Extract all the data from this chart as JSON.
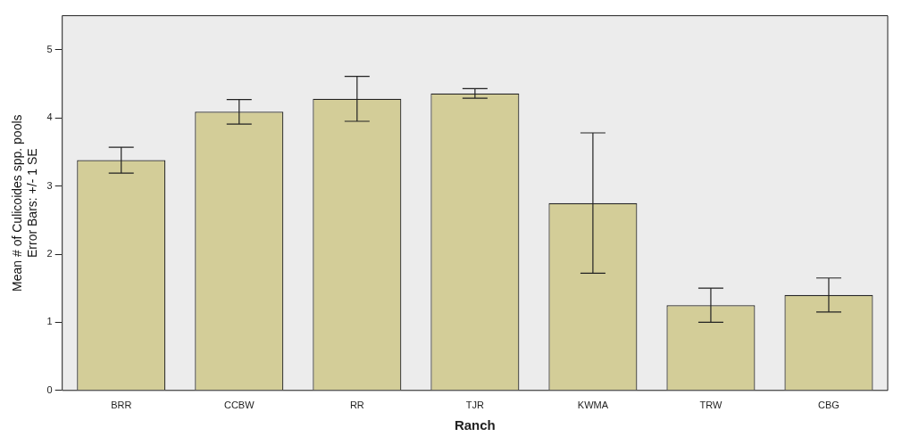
{
  "chart_data": {
    "type": "bar",
    "xlabel": "Ranch",
    "ylabel": "Mean # of Culicoides spp. pools",
    "annotations": [
      "Error Bars: +/- 1 SE"
    ],
    "categories": [
      "BRR",
      "CCBW",
      "RR",
      "TJR",
      "KWMA",
      "TRW",
      "CBG"
    ],
    "values": [
      3.38,
      4.09,
      4.28,
      4.36,
      2.75,
      1.25,
      1.4
    ],
    "errors": [
      0.19,
      0.18,
      0.33,
      0.07,
      1.03,
      0.25,
      0.25
    ],
    "color": "#d3cd98",
    "ylim": [
      0,
      5.5
    ],
    "yticks": [
      0,
      1,
      2,
      3,
      4,
      5
    ],
    "grid": false,
    "legend": false
  }
}
